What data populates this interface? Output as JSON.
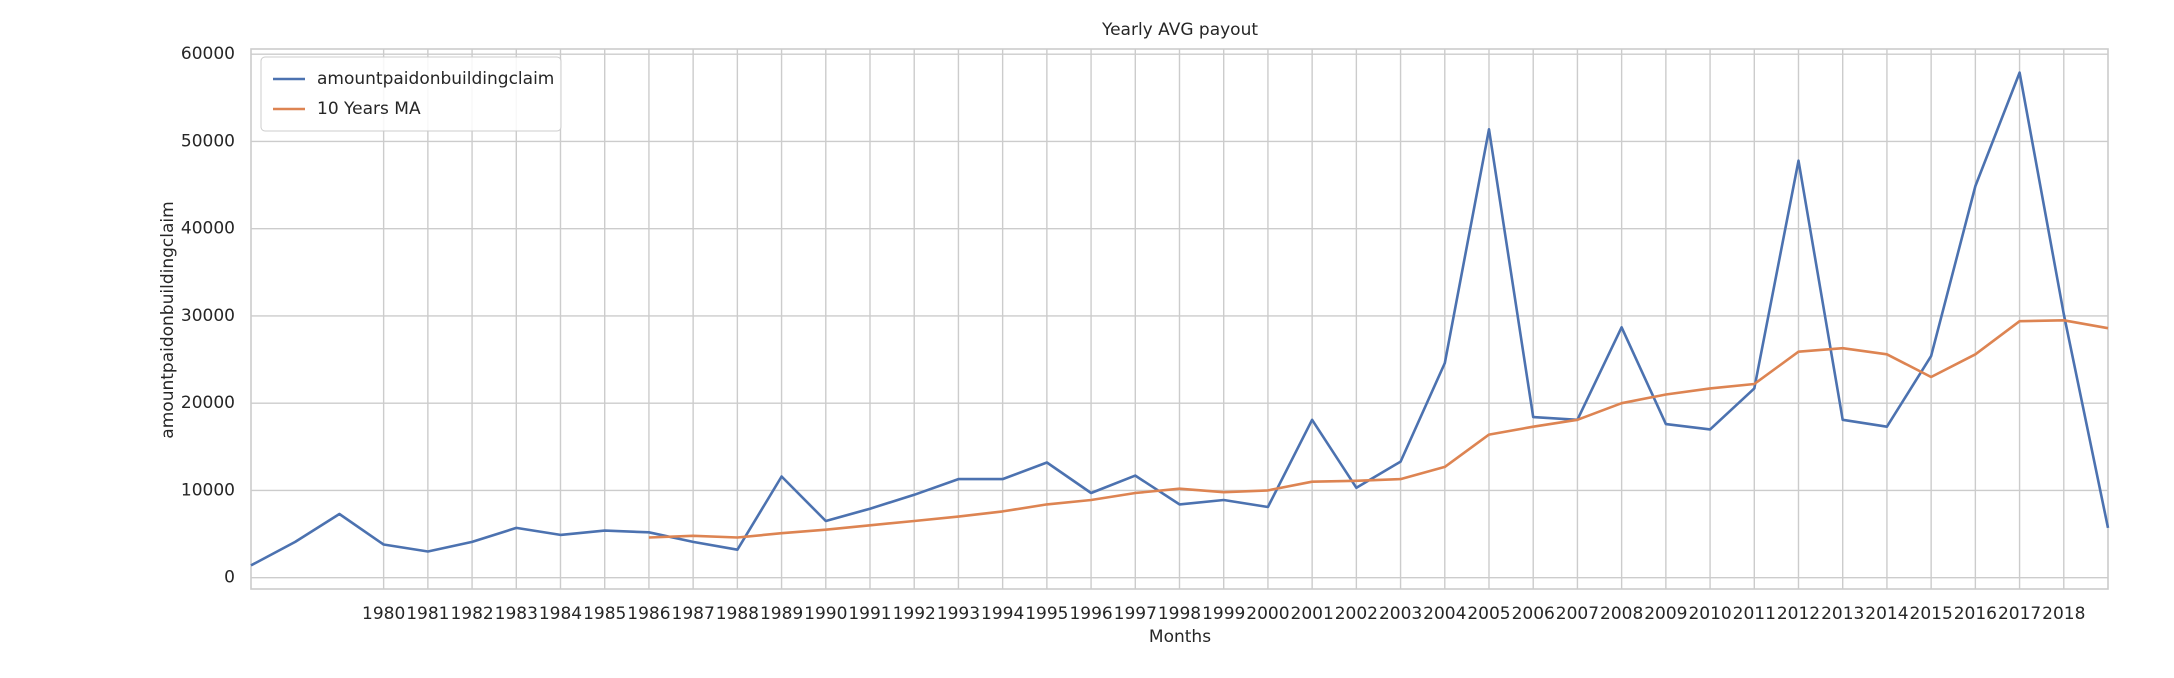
{
  "chart_data": {
    "type": "line",
    "title": "Yearly AVG payout",
    "x_label": "Months",
    "y_label": "amountpaidonbuildingclaim",
    "x": [
      1977,
      1978,
      1979,
      1980,
      1981,
      1982,
      1983,
      1984,
      1985,
      1986,
      1987,
      1988,
      1989,
      1990,
      1991,
      1992,
      1993,
      1994,
      1995,
      1996,
      1997,
      1998,
      1999,
      2000,
      2001,
      2002,
      2003,
      2004,
      2005,
      2006,
      2007,
      2008,
      2009,
      2010,
      2011,
      2012,
      2013,
      2014,
      2015,
      2016,
      2017,
      2018,
      2019
    ],
    "series": [
      {
        "name": "amountpaidonbuildingclaim",
        "color": "#4c72b0",
        "values": [
          1400,
          4100,
          7300,
          3800,
          3000,
          4100,
          5700,
          4900,
          5400,
          5200,
          4100,
          3200,
          11600,
          6500,
          7900,
          9500,
          11300,
          11300,
          13200,
          9700,
          11700,
          8400,
          8900,
          8100,
          18100,
          10300,
          13300,
          24600,
          51400,
          18400,
          18100,
          28700,
          17600,
          17000,
          21700,
          47800,
          18100,
          17300,
          25400,
          44900,
          57900,
          30200,
          5700
        ]
      },
      {
        "name": "10 Years MA",
        "color": "#dd8452",
        "values": [
          null,
          null,
          null,
          null,
          null,
          null,
          null,
          null,
          null,
          4600,
          4800,
          4600,
          5100,
          5500,
          6000,
          6500,
          7000,
          7600,
          8400,
          8900,
          9700,
          10200,
          9800,
          10000,
          11000,
          11100,
          11300,
          12700,
          16400,
          17300,
          18100,
          20000,
          21000,
          21700,
          22200,
          25900,
          26300,
          25600,
          23000,
          25600,
          29400,
          29500,
          28600
        ]
      }
    ],
    "xlim": [
      1977,
      2019
    ],
    "xticks": [
      1980,
      1981,
      1982,
      1983,
      1984,
      1985,
      1986,
      1987,
      1988,
      1989,
      1990,
      1991,
      1992,
      1993,
      1994,
      1995,
      1996,
      1997,
      1998,
      1999,
      2000,
      2001,
      2002,
      2003,
      2004,
      2005,
      2006,
      2007,
      2008,
      2009,
      2010,
      2011,
      2012,
      2013,
      2014,
      2015,
      2016,
      2017,
      2018
    ],
    "ylim": [
      -1300,
      60600
    ],
    "yticks": [
      0,
      10000,
      20000,
      30000,
      40000,
      50000,
      60000
    ],
    "grid": true,
    "legend": "upper left"
  }
}
